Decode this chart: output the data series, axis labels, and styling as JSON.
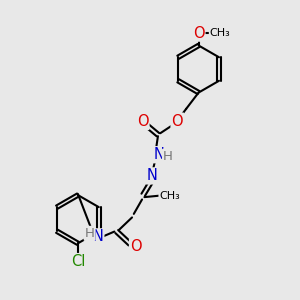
{
  "bg_color": "#e8e8e8",
  "bond_color": "#000000",
  "bond_width": 1.5,
  "atom_colors": {
    "O": "#dd0000",
    "N": "#0000cc",
    "Cl": "#228800",
    "H": "#777777",
    "C": "#000000"
  },
  "font_size": 9.5,
  "fig_size": [
    3.0,
    3.0
  ],
  "dpi": 100
}
